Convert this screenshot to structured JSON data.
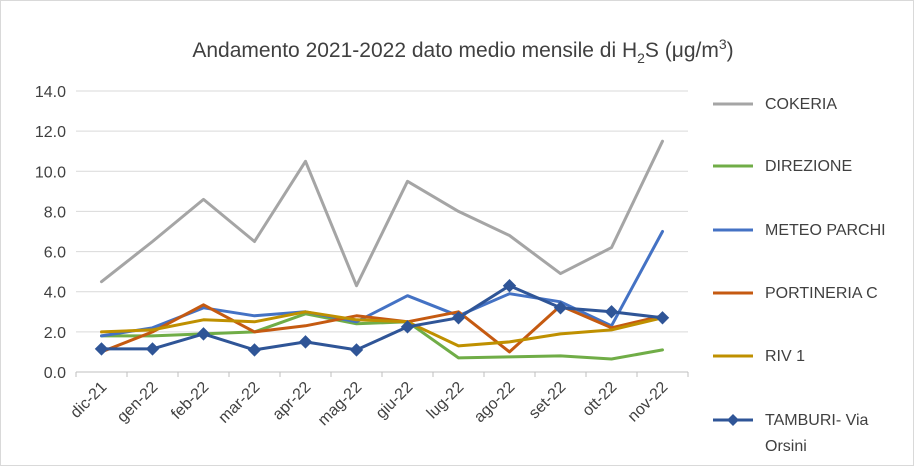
{
  "chart_data": {
    "type": "line",
    "title": {
      "prefix": "Andamento 2021-2022 dato medio mensile di H",
      "sub": "2",
      "mid": "S (μg/m",
      "sup": "3",
      "suffix": ")"
    },
    "xlabel": "",
    "ylabel": "",
    "ylim": [
      0,
      14
    ],
    "yticks": [
      "0.0",
      "2.0",
      "4.0",
      "6.0",
      "8.0",
      "10.0",
      "12.0",
      "14.0"
    ],
    "grid": true,
    "legend_position": "right",
    "categories": [
      "dic-21",
      "gen-22",
      "feb-22",
      "mar-22",
      "apr-22",
      "mag-22",
      "giu-22",
      "lug-22",
      "ago-22",
      "set-22",
      "ott-22",
      "nov-22"
    ],
    "series": [
      {
        "name": "COKERIA",
        "color": "#a5a5a5",
        "marker": "none",
        "values": [
          4.5,
          6.5,
          8.6,
          6.5,
          10.5,
          4.3,
          9.5,
          8.0,
          6.8,
          4.9,
          6.2,
          11.5
        ]
      },
      {
        "name": "DIREZIONE",
        "color": "#70ad47",
        "marker": "none",
        "values": [
          1.8,
          1.8,
          1.9,
          2.0,
          2.9,
          2.4,
          2.5,
          0.7,
          0.75,
          0.8,
          0.65,
          1.1
        ]
      },
      {
        "name": "METEO PARCHI",
        "color": "#4472c4",
        "marker": "none",
        "values": [
          1.8,
          2.2,
          3.2,
          2.8,
          3.0,
          2.5,
          3.8,
          2.8,
          3.9,
          3.5,
          2.3,
          7.0
        ]
      },
      {
        "name": "PORTINERIA C",
        "color": "#c55a11",
        "marker": "none",
        "values": [
          1.0,
          2.0,
          3.35,
          2.0,
          2.3,
          2.8,
          2.5,
          3.0,
          1.0,
          3.3,
          2.2,
          2.8
        ]
      },
      {
        "name": "RIV 1",
        "color": "#bf9000",
        "marker": "none",
        "values": [
          2.0,
          2.1,
          2.6,
          2.5,
          3.0,
          2.6,
          2.5,
          1.3,
          1.5,
          1.9,
          2.1,
          2.7
        ]
      },
      {
        "name": "TAMBURI- Via Orsini",
        "color": "#2f5597",
        "marker": "diamond",
        "legend_lines": [
          "TAMBURI- Via",
          "Orsini"
        ],
        "values": [
          1.15,
          1.15,
          1.9,
          1.1,
          1.5,
          1.1,
          2.25,
          2.7,
          4.3,
          3.2,
          3.0,
          2.7
        ]
      }
    ]
  }
}
